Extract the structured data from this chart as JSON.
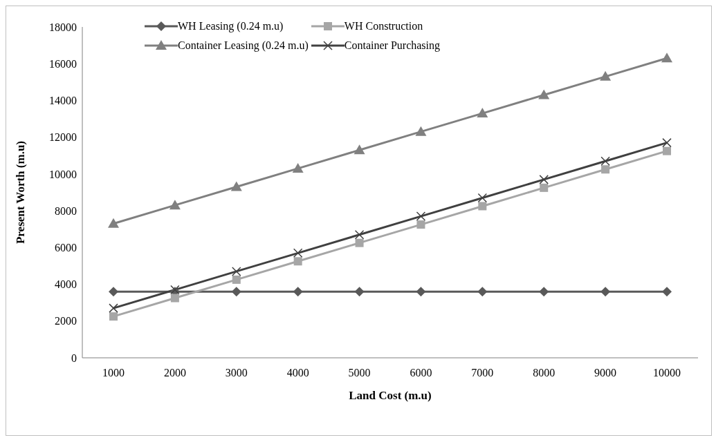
{
  "chart_data": {
    "type": "line",
    "xlabel": "Land Cost (m.u)",
    "ylabel": "Present Worth (m.u)",
    "categories": [
      "1000",
      "2000",
      "3000",
      "4000",
      "5000",
      "6000",
      "7000",
      "8000",
      "9000",
      "10000"
    ],
    "series": [
      {
        "name": "WH Leasing (0.24 m.u)",
        "color": "#595959",
        "marker": "diamond",
        "values": [
          3600,
          3600,
          3600,
          3600,
          3600,
          3600,
          3600,
          3600,
          3600,
          3600
        ]
      },
      {
        "name": "WH Construction",
        "color": "#a6a6a6",
        "marker": "square",
        "values": [
          2250,
          3250,
          4250,
          5250,
          6250,
          7250,
          8250,
          9250,
          10250,
          11250
        ]
      },
      {
        "name": "Container Leasing (0.24 m.u)",
        "color": "#808080",
        "marker": "triangle",
        "values": [
          7300,
          8300,
          9300,
          10300,
          11300,
          12300,
          13300,
          14300,
          15300,
          16300
        ]
      },
      {
        "name": "Container Purchasing",
        "color": "#404040",
        "marker": "cross",
        "values": [
          2700,
          3700,
          4700,
          5700,
          6700,
          7700,
          8700,
          9700,
          10700,
          11700
        ]
      }
    ],
    "ylim": [
      0,
      18000
    ],
    "yticks": [
      0,
      2000,
      4000,
      6000,
      8000,
      10000,
      12000,
      14000,
      16000,
      18000
    ],
    "grid": false,
    "legend": "top left",
    "line_style": "solid"
  }
}
